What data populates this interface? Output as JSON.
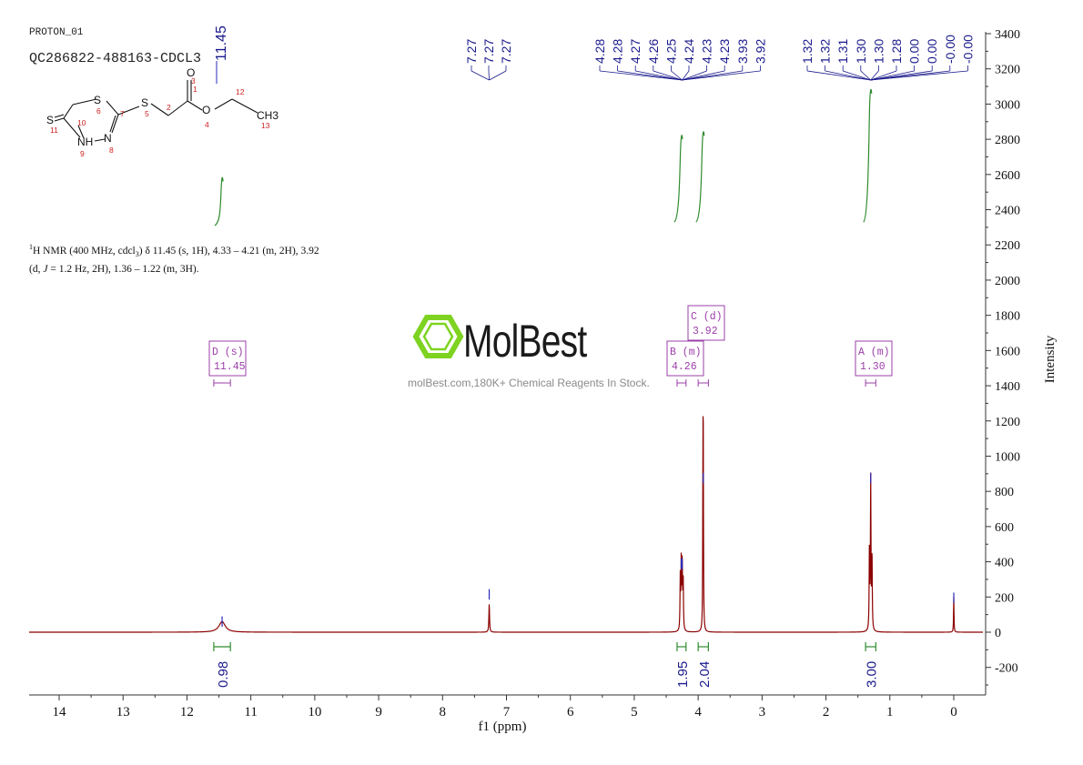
{
  "header": {
    "experiment": "PROTON_01",
    "sample": "QC286822-488163-CDCL3"
  },
  "description": {
    "prefix": "H NMR (400 MHz, cdcl",
    "sup": "1",
    "sub": "3",
    "text1": ") δ 11.45 (s, 1H), 4.33 – 4.21 (m, 2H), 3.92",
    "text2_a": "(d, ",
    "text2_j": "J",
    "text2_b": " = 1.2 Hz, 2H), 1.36 – 1.22 (m, 3H)."
  },
  "structure": {
    "atoms": [
      "S",
      "S",
      "S",
      "NH",
      "N",
      "O",
      "O",
      "CH3"
    ],
    "numbers": [
      "1",
      "2",
      "3",
      "4",
      "5",
      "6",
      "7",
      "8",
      "9",
      "10",
      "11",
      "12",
      "13"
    ],
    "peak_label": "11.45"
  },
  "watermark": {
    "brand": "MolBest",
    "tagline": "molBest.com,180K+ Chemical Reagents In Stock."
  },
  "colors": {
    "spectrum": "#8b0000",
    "peak_marker": "#2b2bb8",
    "integral": "#2e8b2e",
    "multiplet_box": "#9b3fa8",
    "axis": "#333333",
    "logo_green": "#7ed321"
  },
  "chart_data": {
    "type": "line",
    "title": "",
    "xlabel": "f1 (ppm)",
    "ylabel": "Intensity",
    "xlim": [
      14.6,
      -0.5
    ],
    "ylim": [
      -350,
      3450
    ],
    "x_ticks": [
      14,
      13,
      12,
      11,
      10,
      9,
      8,
      7,
      6,
      5,
      4,
      3,
      2,
      1,
      0
    ],
    "y_ticks": [
      -200,
      0,
      200,
      400,
      600,
      800,
      1000,
      1200,
      1400,
      1600,
      1800,
      2000,
      2200,
      2400,
      2600,
      2800,
      3000,
      3200,
      3400
    ],
    "peaks": [
      {
        "ppm": 11.45,
        "height": 60,
        "width": 0.06
      },
      {
        "ppm": 7.27,
        "height": 160,
        "width": 0.006
      },
      {
        "ppm": 4.28,
        "height": 300,
        "width": 0.005
      },
      {
        "ppm": 4.265,
        "height": 380,
        "width": 0.005
      },
      {
        "ppm": 4.25,
        "height": 380,
        "width": 0.005
      },
      {
        "ppm": 4.235,
        "height": 300,
        "width": 0.005
      },
      {
        "ppm": 3.925,
        "height": 850,
        "width": 0.004
      },
      {
        "ppm": 3.92,
        "height": 850,
        "width": 0.004
      },
      {
        "ppm": 1.32,
        "height": 460,
        "width": 0.005
      },
      {
        "ppm": 1.3,
        "height": 860,
        "width": 0.005
      },
      {
        "ppm": 1.28,
        "height": 430,
        "width": 0.005
      },
      {
        "ppm": 0.0,
        "height": 200,
        "width": 0.004
      }
    ],
    "peak_labels": {
      "group1": [
        "11.45"
      ],
      "group2": [
        "7.27",
        "7.27",
        "7.27"
      ],
      "group3": [
        "4.28",
        "4.28",
        "4.27",
        "4.26",
        "4.25",
        "4.24",
        "4.23",
        "4.23",
        "3.93",
        "3.92"
      ],
      "group4": [
        "1.32",
        "1.32",
        "1.31",
        "1.30",
        "1.30",
        "1.28",
        "0.00",
        "0.00",
        "-0.00",
        "-0.00"
      ]
    },
    "integrals": [
      {
        "from": 11.58,
        "to": 11.32,
        "value": "0.98"
      },
      {
        "from": 4.33,
        "to": 4.19,
        "value": "1.95"
      },
      {
        "from": 4.0,
        "to": 3.84,
        "value": "2.04"
      },
      {
        "from": 1.38,
        "to": 1.22,
        "value": "3.00"
      }
    ],
    "integral_curves": [
      {
        "ppm": 11.45,
        "y_from": 2310,
        "y_to": 2560
      },
      {
        "ppm": 4.26,
        "y_from": 2330,
        "y_to": 2800
      },
      {
        "ppm": 3.92,
        "y_from": 2330,
        "y_to": 2820
      },
      {
        "ppm": 1.3,
        "y_from": 2330,
        "y_to": 3060
      }
    ],
    "multiplets": [
      {
        "label": "D (s)",
        "shift": "11.45",
        "ppm": 11.45,
        "range": [
          11.58,
          11.32
        ]
      },
      {
        "label": "B (m)",
        "shift": "4.26",
        "ppm": 4.26,
        "range": [
          4.33,
          4.19
        ]
      },
      {
        "label": "C (d)",
        "shift": "3.92",
        "ppm": 3.92,
        "range": [
          4.0,
          3.84
        ]
      },
      {
        "label": "A (m)",
        "shift": "1.30",
        "ppm": 1.3,
        "range": [
          1.38,
          1.22
        ]
      }
    ]
  }
}
